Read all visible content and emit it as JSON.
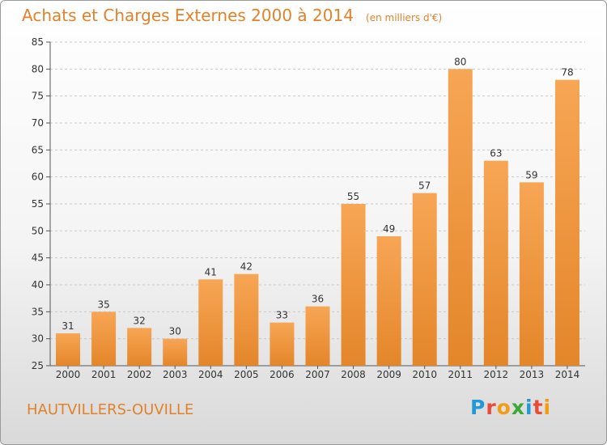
{
  "header": {
    "title": "Achats et Charges Externes 2000 à 2014",
    "unit": "(en milliers d'€)"
  },
  "footer": {
    "town": "HAUTVILLERS-OUVILLE",
    "logo": {
      "text": "Proxiti",
      "letter_colors": [
        "#1f9ad6",
        "#e94b35",
        "#f39c12",
        "#3aaa35",
        "#1f9ad6",
        "#e94b35",
        "#f39c12"
      ]
    }
  },
  "colors": {
    "bar_light": "#f7a655",
    "bar_dark": "#e4862a",
    "grid": "#c8c8c8",
    "title": "#e1822a"
  },
  "chart_data": {
    "type": "bar",
    "title": "Achats et Charges Externes 2000 à 2014",
    "xlabel": "",
    "ylabel": "",
    "categories": [
      "2000",
      "2001",
      "2002",
      "2003",
      "2004",
      "2005",
      "2006",
      "2007",
      "2008",
      "2009",
      "2010",
      "2011",
      "2012",
      "2013",
      "2014"
    ],
    "values": [
      31,
      35,
      32,
      30,
      41,
      42,
      33,
      36,
      55,
      49,
      57,
      80,
      63,
      59,
      78
    ],
    "ylim": [
      25,
      85
    ],
    "yticks": [
      25,
      30,
      35,
      40,
      45,
      50,
      55,
      60,
      65,
      70,
      75,
      80,
      85
    ],
    "grid": "horizontal dashed"
  }
}
